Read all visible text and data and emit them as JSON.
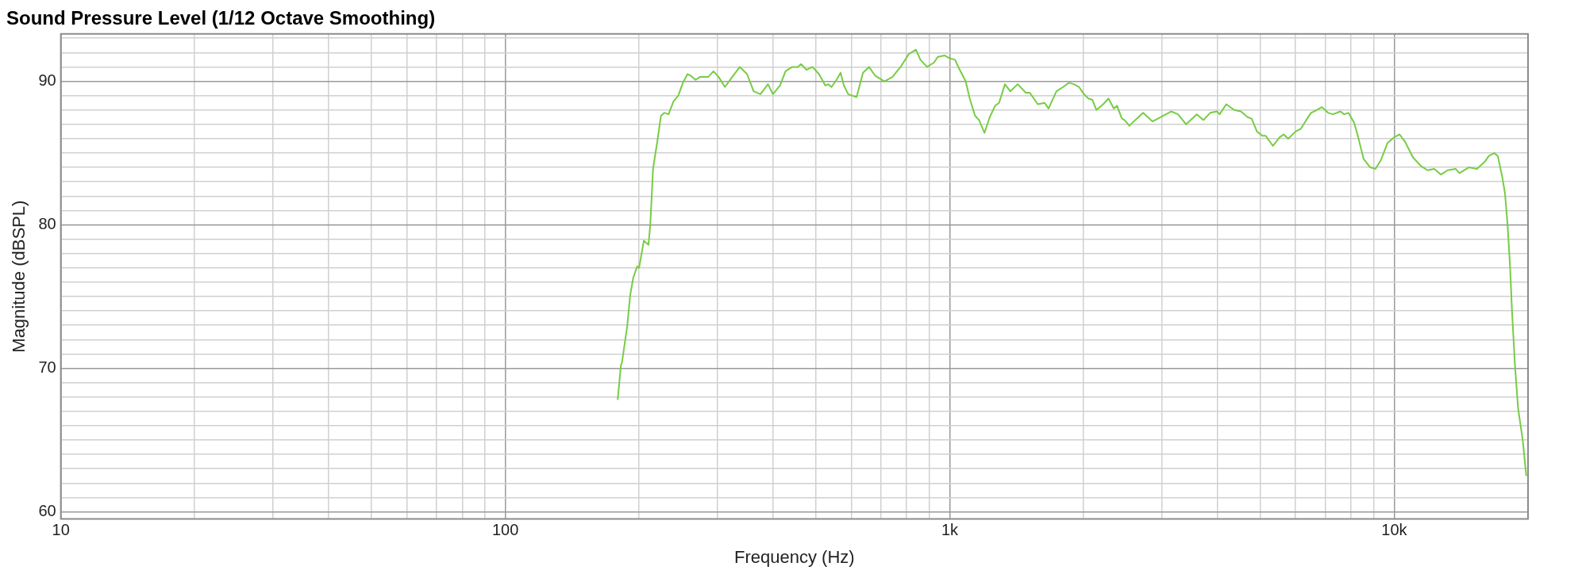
{
  "chart_data": {
    "type": "line",
    "title": "Sound Pressure Level (1/12 Octave Smoothing)",
    "xlabel": "Frequency (Hz)",
    "ylabel": "Magnitude (dBSPL)",
    "log": "x",
    "grid": true,
    "legend": false,
    "marker": "none",
    "line_style": "solid",
    "xlim": [
      10,
      20000
    ],
    "ylim": [
      59.5,
      93.3
    ],
    "xticks": [
      {
        "value": 10,
        "label": "10"
      },
      {
        "value": 20,
        "label": null
      },
      {
        "value": 30,
        "label": null
      },
      {
        "value": 40,
        "label": null
      },
      {
        "value": 50,
        "label": null
      },
      {
        "value": 60,
        "label": null
      },
      {
        "value": 70,
        "label": null
      },
      {
        "value": 80,
        "label": null
      },
      {
        "value": 90,
        "label": null
      },
      {
        "value": 100,
        "label": "100"
      },
      {
        "value": 200,
        "label": null
      },
      {
        "value": 300,
        "label": null
      },
      {
        "value": 400,
        "label": null
      },
      {
        "value": 500,
        "label": null
      },
      {
        "value": 600,
        "label": null
      },
      {
        "value": 700,
        "label": null
      },
      {
        "value": 800,
        "label": null
      },
      {
        "value": 900,
        "label": null
      },
      {
        "value": 1000,
        "label": "1k"
      },
      {
        "value": 2000,
        "label": null
      },
      {
        "value": 3000,
        "label": null
      },
      {
        "value": 4000,
        "label": null
      },
      {
        "value": 5000,
        "label": null
      },
      {
        "value": 6000,
        "label": null
      },
      {
        "value": 7000,
        "label": null
      },
      {
        "value": 8000,
        "label": null
      },
      {
        "value": 9000,
        "label": null
      },
      {
        "value": 10000,
        "label": "10k"
      },
      {
        "value": 20000,
        "label": null
      }
    ],
    "yticks": [
      60,
      {
        "value": 61,
        "label": null
      },
      {
        "value": 62,
        "label": null
      },
      {
        "value": 63,
        "label": null
      },
      {
        "value": 64,
        "label": null
      },
      {
        "value": 65,
        "label": null
      },
      {
        "value": 66,
        "label": null
      },
      {
        "value": 67,
        "label": null
      },
      {
        "value": 68,
        "label": null
      },
      {
        "value": 69,
        "label": null
      },
      70,
      {
        "value": 71,
        "label": null
      },
      {
        "value": 72,
        "label": null
      },
      {
        "value": 73,
        "label": null
      },
      {
        "value": 74,
        "label": null
      },
      {
        "value": 75,
        "label": null
      },
      {
        "value": 76,
        "label": null
      },
      {
        "value": 77,
        "label": null
      },
      {
        "value": 78,
        "label": null
      },
      {
        "value": 79,
        "label": null
      },
      80,
      {
        "value": 81,
        "label": null
      },
      {
        "value": 82,
        "label": null
      },
      {
        "value": 83,
        "label": null
      },
      {
        "value": 84,
        "label": null
      },
      {
        "value": 85,
        "label": null
      },
      {
        "value": 86,
        "label": null
      },
      {
        "value": 87,
        "label": null
      },
      {
        "value": 88,
        "label": null
      },
      {
        "value": 89,
        "label": null
      },
      90,
      {
        "value": 91,
        "label": null
      },
      {
        "value": 92,
        "label": null
      },
      {
        "value": 93,
        "label": null
      }
    ],
    "series": [
      {
        "color": "#77cc44",
        "x": [
          179,
          182,
          183,
          188,
          191,
          194,
          198,
          200,
          205,
          210,
          212,
          215,
          220,
          224,
          228,
          233,
          239,
          245,
          251,
          257,
          261,
          268,
          274,
          286,
          294,
          302,
          312,
          324,
          337,
          350,
          362,
          375,
          390,
          400,
          415,
          427,
          442,
          455,
          463,
          476,
          491,
          508,
          525,
          533,
          542,
          556,
          568,
          578,
          591,
          617,
          638,
          658,
          679,
          713,
          743,
          775,
          809,
          839,
          859,
          889,
          921,
          940,
          973,
          1000,
          1028,
          1049,
          1086,
          1109,
          1140,
          1164,
          1197,
          1230,
          1265,
          1291,
          1331,
          1368,
          1422,
          1483,
          1514,
          1578,
          1634,
          1668,
          1738,
          1799,
          1854,
          1901,
          1954,
          2004,
          2051,
          2094,
          2138,
          2214,
          2276,
          2340,
          2379,
          2439,
          2473,
          2535,
          2614,
          2723,
          2859,
          2979,
          3148,
          3263,
          3402,
          3596,
          3723,
          3855,
          3993,
          4048,
          4189,
          4366,
          4519,
          4680,
          4777,
          4911,
          5050,
          5138,
          5335,
          5524,
          5640,
          5772,
          5999,
          6166,
          6339,
          6500,
          6699,
          6871,
          7102,
          7282,
          7569,
          7715,
          7890,
          8128,
          8298,
          8530,
          8830,
          9076,
          9329,
          9659,
          10000,
          10280,
          10570,
          11020,
          11480,
          11890,
          12300,
          12740,
          13180,
          13740,
          14020,
          14720,
          15350,
          15990,
          16330,
          16790,
          17100,
          17510,
          17750,
          17990,
          18230,
          18400,
          18690,
          19000,
          19460,
          19820
        ],
        "values": [
          67.8,
          70.2,
          70.4,
          72.9,
          75.1,
          76.3,
          77.1,
          77.0,
          78.9,
          78.6,
          80.1,
          83.9,
          85.9,
          87.6,
          87.8,
          87.7,
          88.6,
          89.0,
          89.9,
          90.5,
          90.4,
          90.1,
          90.3,
          90.3,
          90.7,
          90.3,
          89.6,
          90.3,
          91.0,
          90.5,
          89.3,
          89.1,
          89.8,
          89.1,
          89.7,
          90.7,
          91.0,
          91.0,
          91.2,
          90.8,
          91.0,
          90.5,
          89.7,
          89.8,
          89.6,
          90.1,
          90.6,
          89.7,
          89.1,
          88.9,
          90.6,
          91.0,
          90.4,
          90.0,
          90.3,
          91.0,
          91.9,
          92.2,
          91.5,
          91.0,
          91.3,
          91.7,
          91.8,
          91.6,
          91.5,
          90.9,
          90.0,
          88.8,
          87.6,
          87.3,
          86.4,
          87.5,
          88.3,
          88.5,
          89.8,
          89.3,
          89.8,
          89.2,
          89.2,
          88.4,
          88.5,
          88.1,
          89.3,
          89.6,
          89.9,
          89.8,
          89.6,
          89.1,
          88.8,
          88.7,
          88.0,
          88.4,
          88.8,
          88.1,
          88.3,
          87.4,
          87.3,
          86.9,
          87.3,
          87.8,
          87.2,
          87.5,
          87.9,
          87.7,
          87.0,
          87.7,
          87.3,
          87.8,
          87.9,
          87.7,
          88.4,
          88.0,
          87.9,
          87.5,
          87.4,
          86.5,
          86.2,
          86.2,
          85.5,
          86.1,
          86.3,
          86.0,
          86.5,
          86.7,
          87.3,
          87.8,
          88.0,
          88.2,
          87.8,
          87.7,
          87.9,
          87.7,
          87.8,
          87.1,
          86.1,
          84.6,
          84.0,
          83.9,
          84.5,
          85.7,
          86.1,
          86.3,
          85.8,
          84.7,
          84.1,
          83.8,
          83.9,
          83.5,
          83.8,
          83.9,
          83.6,
          84.0,
          83.9,
          84.4,
          84.8,
          85.0,
          84.8,
          83.3,
          82.2,
          80.0,
          77.0,
          74.1,
          70.2,
          67.2,
          65.0,
          62.5
        ]
      }
    ]
  }
}
